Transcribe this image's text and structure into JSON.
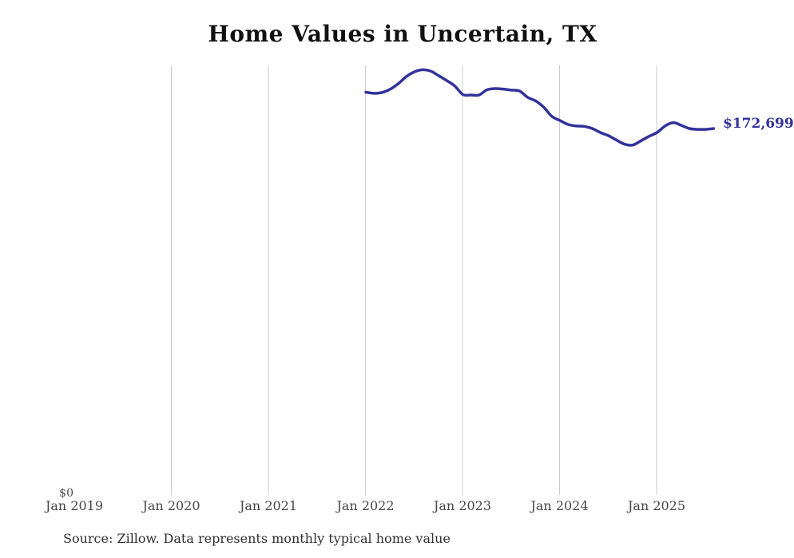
{
  "chart_data": {
    "type": "line",
    "title": "Home Values in Uncertain, TX",
    "source_note": "Source: Zillow. Data represents monthly typical home value",
    "x_tick_labels": [
      "Jan 2019",
      "Jan 2020",
      "Jan 2021",
      "Jan 2022",
      "Jan 2023",
      "Jan 2024",
      "Jan 2025"
    ],
    "y_zero_label": "$0",
    "end_label": "$172,699",
    "latest_value": 172699,
    "ylabel": "",
    "xlabel": "",
    "ylim": [
      0,
      205000
    ],
    "grid": "vertical-yearly-gridlines",
    "legend_position": "none",
    "series": [
      {
        "name": "Monthly typical home value",
        "color": "#32329B",
        "x": [
          "Jan 2022",
          "Feb 2022",
          "Mar 2022",
          "Apr 2022",
          "May 2022",
          "Jun 2022",
          "Jul 2022",
          "Aug 2022",
          "Sep 2022",
          "Oct 2022",
          "Nov 2022",
          "Dec 2022",
          "Jan 2023",
          "Feb 2023",
          "Mar 2023",
          "Apr 2023",
          "May 2023",
          "Jun 2023",
          "Jul 2023",
          "Aug 2023",
          "Sep 2023",
          "Oct 2023",
          "Nov 2023",
          "Dec 2023",
          "Jan 2024",
          "Feb 2024",
          "Mar 2024",
          "Apr 2024",
          "May 2024",
          "Jun 2024",
          "Jul 2024",
          "Aug 2024",
          "Sep 2024",
          "Oct 2024",
          "Nov 2024",
          "Dec 2024",
          "Jan 2025",
          "Feb 2025",
          "Mar 2025",
          "Apr 2025",
          "May 2025",
          "Jun 2025",
          "Jul 2025",
          "Aug 2025"
        ],
        "values": [
          189800,
          189300,
          189700,
          191200,
          193800,
          197200,
          199400,
          200400,
          199800,
          197600,
          195300,
          192700,
          188700,
          188500,
          188500,
          191000,
          191500,
          191300,
          190800,
          190400,
          187400,
          185700,
          182700,
          178400,
          176500,
          174600,
          173900,
          173700,
          172700,
          170800,
          169300,
          167200,
          165300,
          164900,
          166900,
          169000,
          170800,
          173900,
          175500,
          174200,
          172700,
          172300,
          172300,
          172699
        ]
      }
    ]
  },
  "colors": {
    "line": "#32329B",
    "gridline": "#cbcbcb",
    "title_text": "#111111",
    "axis_text": "#474747",
    "source_text": "#303030"
  }
}
